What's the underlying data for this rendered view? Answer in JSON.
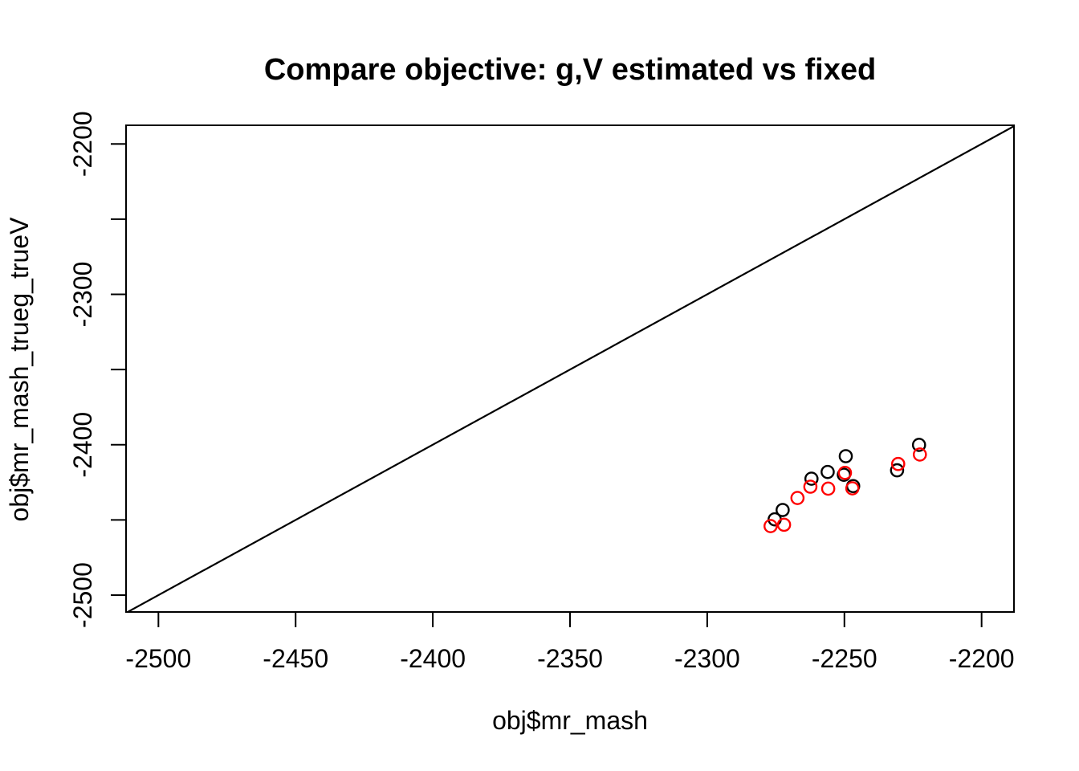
{
  "figure": {
    "title": "Compare objective: g,V estimated vs fixed",
    "background_color": "#FFFFFF",
    "foreground_color": "#000000"
  },
  "chart_data": {
    "type": "scatter",
    "title": "Compare objective: g,V estimated vs fixed",
    "xlabel": "obj$mr_mash",
    "ylabel": "obj$mr_mash_trueg_trueV",
    "xlim": [
      -2511.8,
      -2188.2
    ],
    "ylim": [
      -2511.2,
      -2187.6
    ],
    "grid": false,
    "legend_position": "none",
    "x_ticks": [
      {
        "value": -2500,
        "label": "-2500"
      },
      {
        "value": -2450,
        "label": "-2450"
      },
      {
        "value": -2400,
        "label": "-2400"
      },
      {
        "value": -2350,
        "label": "-2350"
      },
      {
        "value": -2300,
        "label": "-2300"
      },
      {
        "value": -2250,
        "label": "-2250"
      },
      {
        "value": -2200,
        "label": "-2200"
      }
    ],
    "y_ticks": [
      {
        "value": -2500,
        "label": "-2500"
      },
      {
        "value": -2450,
        "label": ""
      },
      {
        "value": -2400,
        "label": "-2400"
      },
      {
        "value": -2350,
        "label": ""
      },
      {
        "value": -2300,
        "label": "-2300"
      },
      {
        "value": -2250,
        "label": ""
      },
      {
        "value": -2200,
        "label": "-2200"
      }
    ],
    "reference_line": {
      "intercept": 0,
      "slope": 1,
      "color": "#000000"
    },
    "marker": "open-circle",
    "series": [
      {
        "name": "black",
        "color": "#000000",
        "points": [
          [
            -2275.4,
            -2449.6
          ],
          [
            -2272.5,
            -2443.4
          ],
          [
            -2262.0,
            -2422.6
          ],
          [
            -2256.1,
            -2418.1
          ],
          [
            -2250.2,
            -2420.0
          ],
          [
            -2249.5,
            -2407.6
          ],
          [
            -2246.8,
            -2427.5
          ],
          [
            -2230.8,
            -2417.0
          ],
          [
            -2222.8,
            -2400.1
          ]
        ]
      },
      {
        "name": "red",
        "color": "#FF0000",
        "points": [
          [
            -2276.9,
            -2454.1
          ],
          [
            -2272.0,
            -2453.2
          ],
          [
            -2267.1,
            -2435.4
          ],
          [
            -2262.4,
            -2427.9
          ],
          [
            -2255.9,
            -2429.2
          ],
          [
            -2249.8,
            -2418.7
          ],
          [
            -2247.1,
            -2429.0
          ],
          [
            -2230.4,
            -2412.8
          ],
          [
            -2222.5,
            -2406.5
          ]
        ]
      }
    ]
  }
}
